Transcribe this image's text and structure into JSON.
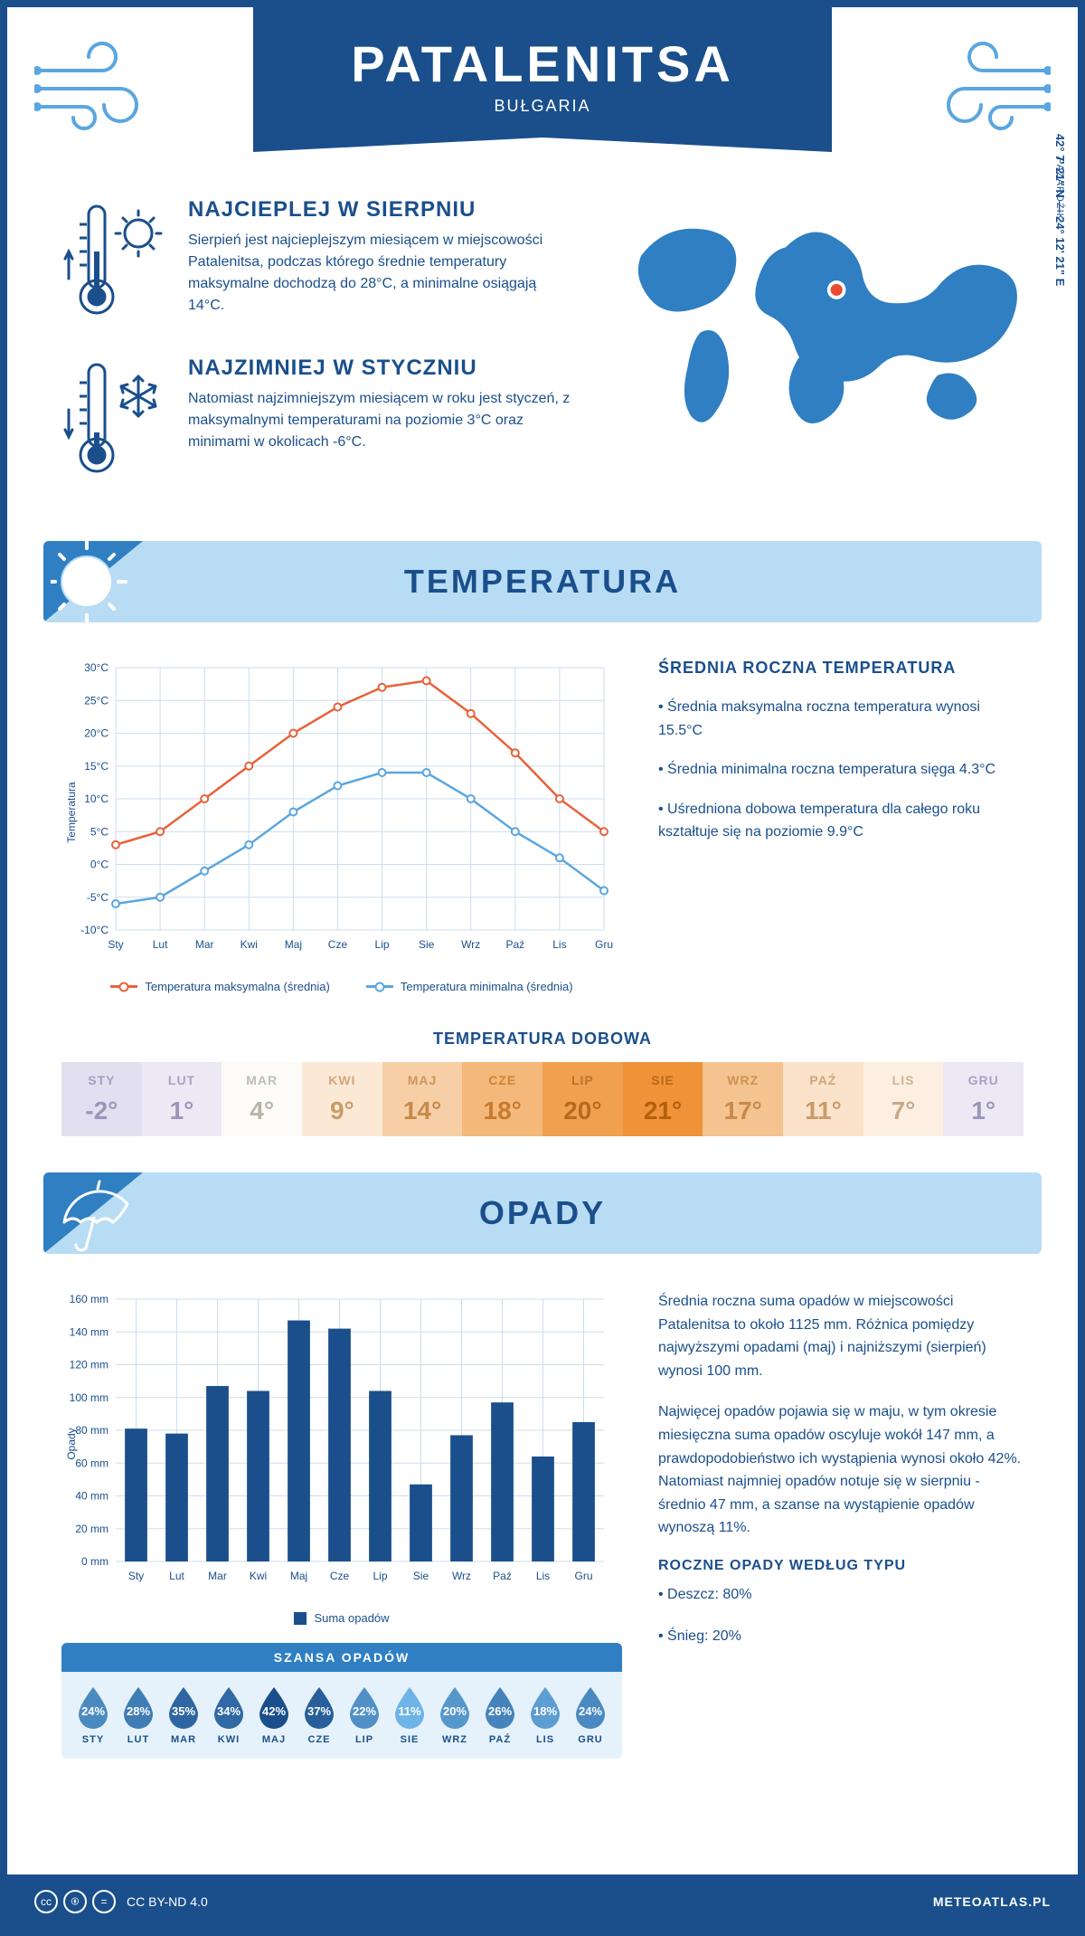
{
  "header": {
    "title": "PATALENITSA",
    "country": "BUŁGARIA"
  },
  "location": {
    "region": "PAZARDŻIK",
    "coords": "42° 7' 21\" N — 24° 12' 21\" E"
  },
  "intro": {
    "warm": {
      "title": "NAJCIEPLEJ W SIERPNIU",
      "text": "Sierpień jest najcieplejszym miesiącem w miejscowości Patalenitsa, podczas którego średnie temperatury maksymalne dochodzą do 28°C, a minimalne osiągają 14°C."
    },
    "cold": {
      "title": "NAJZIMNIEJ W STYCZNIU",
      "text": "Natomiast najzimniejszym miesiącem w roku jest styczeń, z maksymalnymi temperaturami na poziomie 3°C oraz minimami w okolicach -6°C."
    }
  },
  "sections": {
    "temp_title": "TEMPERATURA",
    "precip_title": "OPADY"
  },
  "temp_chart": {
    "type": "line",
    "months": [
      "Sty",
      "Lut",
      "Mar",
      "Kwi",
      "Maj",
      "Cze",
      "Lip",
      "Sie",
      "Wrz",
      "Paź",
      "Lis",
      "Gru"
    ],
    "max_series": [
      3,
      5,
      10,
      15,
      20,
      24,
      27,
      28,
      23,
      17,
      10,
      5
    ],
    "min_series": [
      -6,
      -5,
      -1,
      3,
      8,
      12,
      14,
      14,
      10,
      5,
      1,
      -4
    ],
    "ylim": [
      -10,
      30
    ],
    "ytick_step": 5,
    "y_suffix": "°C",
    "ylabel": "Temperatura",
    "max_color": "#e8623a",
    "min_color": "#5aa6e0",
    "grid_color": "#cdddee",
    "line_width": 2.5,
    "marker_radius": 4,
    "legend_max": "Temperatura maksymalna (średnia)",
    "legend_min": "Temperatura minimalna (średnia)"
  },
  "temp_side": {
    "heading": "ŚREDNIA ROCZNA TEMPERATURA",
    "bullets": [
      "• Średnia maksymalna roczna temperatura wynosi 15.5°C",
      "• Średnia minimalna roczna temperatura sięga 4.3°C",
      "• Uśredniona dobowa temperatura dla całego roku kształtuje się na poziomie 9.9°C"
    ]
  },
  "daily": {
    "title": "TEMPERATURA DOBOWA",
    "months": [
      "STY",
      "LUT",
      "MAR",
      "KWI",
      "MAJ",
      "CZE",
      "LIP",
      "SIE",
      "WRZ",
      "PAŹ",
      "LIS",
      "GRU"
    ],
    "values": [
      "-2°",
      "1°",
      "4°",
      "9°",
      "14°",
      "18°",
      "20°",
      "21°",
      "17°",
      "11°",
      "7°",
      "1°"
    ],
    "bg_colors": [
      "#e2dff0",
      "#ece9f5",
      "#fdfbf7",
      "#fbe9d6",
      "#f7cfa6",
      "#f4b87b",
      "#f1a050",
      "#ef9238",
      "#f5c38f",
      "#fae2cb",
      "#fcefe2",
      "#ece9f5"
    ],
    "text_colors": [
      "#9b95b8",
      "#9b95b8",
      "#b8b3a8",
      "#c99b6a",
      "#c78a4b",
      "#c77a2e",
      "#b76a1e",
      "#b35f10",
      "#c78a4b",
      "#c99b6a",
      "#c9a98a",
      "#9b95b8"
    ]
  },
  "precip_chart": {
    "type": "bar",
    "months": [
      "Sty",
      "Lut",
      "Mar",
      "Kwi",
      "Maj",
      "Cze",
      "Lip",
      "Sie",
      "Wrz",
      "Paź",
      "Lis",
      "Gru"
    ],
    "values": [
      81,
      78,
      107,
      104,
      147,
      142,
      104,
      47,
      77,
      97,
      64,
      85
    ],
    "ylim": [
      0,
      160
    ],
    "ytick_step": 20,
    "y_suffix": " mm",
    "ylabel": "Opady",
    "bar_color": "#1a4f8c",
    "grid_color": "#cdddee",
    "bar_width_ratio": 0.55,
    "legend": "Suma opadów"
  },
  "precip_side": {
    "p1": "Średnia roczna suma opadów w miejscowości Patalenitsa to około 1125 mm. Różnica pomiędzy najwyższymi opadami (maj) i najniższymi (sierpień) wynosi 100 mm.",
    "p2": "Najwięcej opadów pojawia się w maju, w tym okresie miesięczna suma opadów oscyluje wokół 147 mm, a prawdopodobieństwo ich wystąpienia wynosi około 42%. Natomiast najmniej opadów notuje się w sierpniu - średnio 47 mm, a szanse na wystąpienie opadów wynoszą 11%.",
    "type_heading": "ROCZNE OPADY WEDŁUG TYPU",
    "type_bullets": [
      "• Deszcz: 80%",
      "• Śnieg: 20%"
    ]
  },
  "chance": {
    "title": "SZANSA OPADÓW",
    "months": [
      "STY",
      "LUT",
      "MAR",
      "KWI",
      "MAJ",
      "CZE",
      "LIP",
      "SIE",
      "WRZ",
      "PAŹ",
      "LIS",
      "GRU"
    ],
    "values": [
      "24%",
      "28%",
      "35%",
      "34%",
      "42%",
      "37%",
      "22%",
      "11%",
      "20%",
      "26%",
      "18%",
      "24%"
    ],
    "raw": [
      24,
      28,
      35,
      34,
      42,
      37,
      22,
      11,
      20,
      26,
      18,
      24
    ],
    "color_low": "#6fb4e6",
    "color_high": "#1a4f8c"
  },
  "footer": {
    "license": "CC BY-ND 4.0",
    "site": "METEOATLAS.PL"
  },
  "colors": {
    "primary": "#1a4f8c",
    "light_blue": "#b9dcf5",
    "mid_blue": "#2f7fc2",
    "accent_blue": "#5aa6e0"
  }
}
